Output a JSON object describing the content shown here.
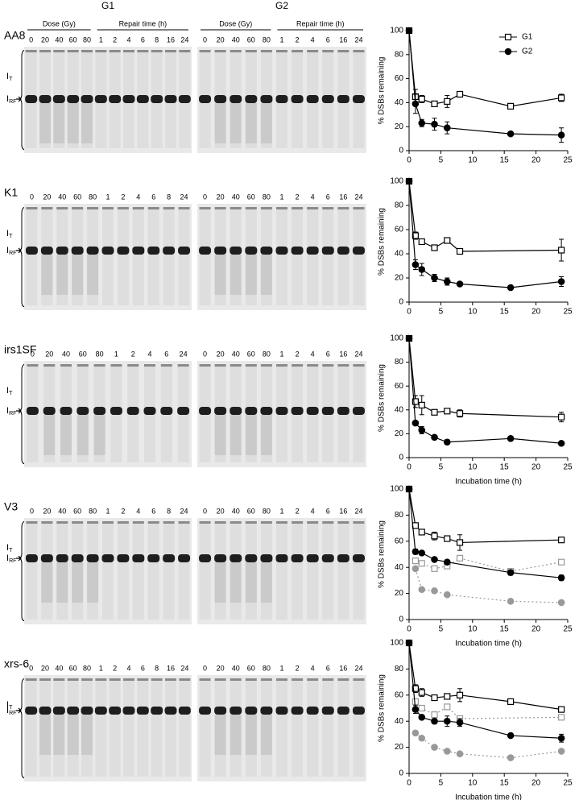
{
  "figure_headers": {
    "g1": "G1",
    "g2": "G2",
    "dose": "Dose (Gy)",
    "repair": "Repair time (h)"
  },
  "gel_labels": {
    "top": {
      "letter": "I",
      "subscript": "T"
    },
    "band": {
      "letter": "I",
      "subscript": "RF"
    }
  },
  "rows": [
    {
      "cell_line": "AA8",
      "g1_lanes": [
        0,
        20,
        40,
        60,
        80,
        1,
        2,
        4,
        6,
        8,
        16,
        24
      ],
      "g2_lanes": [
        0,
        20,
        40,
        60,
        80,
        1,
        2,
        4,
        6,
        16,
        24
      ]
    },
    {
      "cell_line": "K1",
      "g1_lanes": [
        0,
        20,
        40,
        60,
        80,
        1,
        2,
        4,
        6,
        8,
        24
      ],
      "g2_lanes": [
        0,
        20,
        40,
        60,
        80,
        1,
        2,
        4,
        6,
        16,
        24
      ]
    },
    {
      "cell_line": "irs1SF",
      "g1_lanes": [
        0,
        20,
        40,
        60,
        80,
        1,
        2,
        4,
        6,
        24
      ],
      "g2_lanes": [
        0,
        20,
        40,
        60,
        80,
        1,
        2,
        4,
        6,
        16,
        24
      ]
    },
    {
      "cell_line": "V3",
      "g1_lanes": [
        0,
        20,
        40,
        60,
        80,
        1,
        2,
        4,
        6,
        8,
        24
      ],
      "g2_lanes": [
        0,
        20,
        40,
        60,
        80,
        1,
        2,
        4,
        6,
        16,
        24
      ]
    },
    {
      "cell_line": "xrs-6",
      "g1_lanes": [
        0,
        20,
        40,
        60,
        80,
        1,
        2,
        4,
        6,
        8,
        16,
        24
      ],
      "g2_lanes": [
        0,
        20,
        40,
        60,
        80,
        1,
        2,
        4,
        6,
        16,
        24
      ]
    }
  ],
  "chart_data": [
    {
      "type": "line",
      "ylabel": "% DSBs remaining",
      "xlim": [
        0,
        25
      ],
      "xticks": [
        0,
        5,
        10,
        15,
        20,
        25
      ],
      "ylim": [
        0,
        100
      ],
      "yticks": [
        0,
        20,
        40,
        60,
        80,
        100
      ],
      "legend": "upper right",
      "series": [
        {
          "name": "G1",
          "color": "#000000",
          "marker": "square",
          "filled": false,
          "dashed": false,
          "x": [
            0,
            1,
            2,
            4,
            6,
            8,
            16,
            24
          ],
          "values": [
            100,
            45,
            43,
            39,
            41,
            47,
            37,
            44
          ],
          "errors": [
            null,
            6,
            3,
            2,
            5,
            2,
            2,
            3
          ]
        },
        {
          "name": "G2",
          "color": "#000000",
          "marker": "circle",
          "filled": true,
          "dashed": false,
          "x": [
            0,
            1,
            2,
            4,
            6,
            16,
            24
          ],
          "values": [
            100,
            39,
            23,
            22,
            19,
            14,
            13
          ],
          "errors": [
            null,
            8,
            3,
            5,
            5,
            1,
            6
          ]
        }
      ]
    },
    {
      "type": "line",
      "ylabel": "% DSBs remaining",
      "xlim": [
        0,
        25
      ],
      "xticks": [
        0,
        5,
        10,
        15,
        20,
        25
      ],
      "ylim": [
        0,
        100
      ],
      "yticks": [
        0,
        20,
        40,
        60,
        80,
        100
      ],
      "series": [
        {
          "color": "#000000",
          "marker": "square",
          "filled": false,
          "dashed": false,
          "x": [
            0,
            1,
            2,
            4,
            6,
            8,
            24
          ],
          "values": [
            100,
            55,
            50,
            45,
            51,
            42,
            43
          ],
          "errors": [
            null,
            3,
            2,
            1,
            1,
            1,
            9
          ]
        },
        {
          "color": "#000000",
          "marker": "circle",
          "filled": true,
          "dashed": false,
          "x": [
            0,
            1,
            2,
            4,
            6,
            8,
            16,
            24
          ],
          "values": [
            100,
            31,
            27,
            20,
            17,
            15,
            12,
            17
          ],
          "errors": [
            null,
            4,
            5,
            3,
            3,
            1,
            1,
            4
          ]
        }
      ]
    },
    {
      "type": "line",
      "ylabel": "% DSBs remaining",
      "xlabel": "Incubation time (h)",
      "xlim": [
        0,
        25
      ],
      "xticks": [
        0,
        5,
        10,
        15,
        20,
        25
      ],
      "ylim": [
        0,
        100
      ],
      "yticks": [
        0,
        20,
        40,
        60,
        80,
        100
      ],
      "series": [
        {
          "color": "#000000",
          "marker": "square",
          "filled": false,
          "dashed": false,
          "x": [
            0,
            1,
            2,
            4,
            6,
            8,
            24
          ],
          "values": [
            100,
            47,
            44,
            38,
            39,
            37,
            34
          ],
          "errors": [
            null,
            5,
            8,
            1,
            1,
            3,
            4
          ]
        },
        {
          "color": "#000000",
          "marker": "circle",
          "filled": true,
          "dashed": false,
          "x": [
            0,
            1,
            2,
            4,
            6,
            16,
            24
          ],
          "values": [
            100,
            29,
            23,
            17,
            13,
            16,
            12
          ],
          "errors": [
            null,
            1,
            3,
            1,
            2,
            1,
            1
          ]
        }
      ]
    },
    {
      "type": "line",
      "ylabel": "% DSBs remaining",
      "xlabel": "Incubation time (h)",
      "xlim": [
        0,
        25
      ],
      "xticks": [
        0,
        5,
        10,
        15,
        20,
        25
      ],
      "ylim": [
        0,
        100
      ],
      "yticks": [
        0,
        20,
        40,
        60,
        80,
        100
      ],
      "series": [
        {
          "color": "#999999",
          "marker": "square",
          "filled": false,
          "dashed": true,
          "x": [
            1,
            2,
            4,
            6,
            8,
            16,
            24
          ],
          "values": [
            45,
            43,
            39,
            41,
            47,
            37,
            44
          ]
        },
        {
          "color": "#999999",
          "marker": "circle",
          "filled": true,
          "dashed": true,
          "x": [
            1,
            2,
            4,
            6,
            16,
            24
          ],
          "values": [
            39,
            23,
            22,
            19,
            14,
            13
          ]
        },
        {
          "color": "#000000",
          "marker": "square",
          "filled": false,
          "dashed": false,
          "x": [
            0,
            1,
            2,
            4,
            6,
            8,
            24
          ],
          "values": [
            100,
            72,
            67,
            64,
            62,
            59,
            61
          ],
          "errors": [
            null,
            1,
            1,
            3,
            1,
            6,
            1
          ]
        },
        {
          "color": "#000000",
          "marker": "circle",
          "filled": true,
          "dashed": false,
          "x": [
            0,
            1,
            2,
            4,
            6,
            16,
            24
          ],
          "values": [
            100,
            52,
            51,
            46,
            44,
            36,
            32
          ],
          "errors": [
            null,
            2,
            1,
            1,
            1,
            2,
            2
          ]
        }
      ]
    },
    {
      "type": "line",
      "ylabel": "% DSBs remaining",
      "xlabel": "Incubation time (h)",
      "xlim": [
        0,
        25
      ],
      "xticks": [
        0,
        5,
        10,
        15,
        20,
        25
      ],
      "ylim": [
        0,
        100
      ],
      "yticks": [
        0,
        20,
        40,
        60,
        80,
        100
      ],
      "series": [
        {
          "color": "#999999",
          "marker": "square",
          "filled": false,
          "dashed": true,
          "x": [
            1,
            2,
            4,
            6,
            8,
            24
          ],
          "values": [
            55,
            50,
            45,
            51,
            42,
            43
          ]
        },
        {
          "color": "#999999",
          "marker": "circle",
          "filled": true,
          "dashed": true,
          "x": [
            1,
            2,
            4,
            6,
            8,
            16,
            24
          ],
          "values": [
            31,
            27,
            20,
            17,
            15,
            12,
            17
          ]
        },
        {
          "color": "#000000",
          "marker": "square",
          "filled": false,
          "dashed": false,
          "x": [
            0,
            1,
            2,
            4,
            6,
            8,
            16,
            24
          ],
          "values": [
            100,
            65,
            62,
            58,
            59,
            60,
            55,
            49
          ],
          "errors": [
            null,
            3,
            3,
            1,
            1,
            5,
            1,
            2
          ]
        },
        {
          "color": "#000000",
          "marker": "circle",
          "filled": true,
          "dashed": false,
          "x": [
            0,
            1,
            2,
            4,
            6,
            8,
            16,
            24
          ],
          "values": [
            100,
            49,
            43,
            40,
            40,
            39,
            29,
            27
          ],
          "errors": [
            null,
            3,
            1,
            2,
            4,
            3,
            1,
            3
          ]
        }
      ]
    }
  ]
}
